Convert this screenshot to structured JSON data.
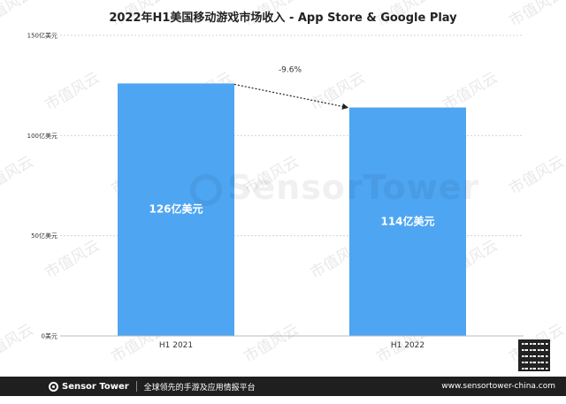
{
  "chart_data": {
    "type": "bar",
    "title": "2022年H1美国移动游戏市场收入 - App Store & Google Play",
    "categories": [
      "H1 2021",
      "H1 2022"
    ],
    "values": [
      126,
      114
    ],
    "data_labels": [
      "126亿美元",
      "114亿美元"
    ],
    "y_ticks": [
      0,
      50,
      100,
      150
    ],
    "y_tick_labels": [
      "0美元",
      "50亿美元",
      "100亿美元",
      "150亿美元"
    ],
    "ylim": [
      0,
      150
    ],
    "grid": true,
    "bar_color": "#4ea5f2",
    "annotation": {
      "text": "-9.6%",
      "from": "H1 2021",
      "to": "H1 2022"
    }
  },
  "watermark": {
    "text": "市值风云",
    "brand": "SensorTower"
  },
  "footer": {
    "brand": "Sensor Tower",
    "tagline": "全球领先的手游及应用情报平台",
    "url": "www.sensortower-china.com"
  }
}
